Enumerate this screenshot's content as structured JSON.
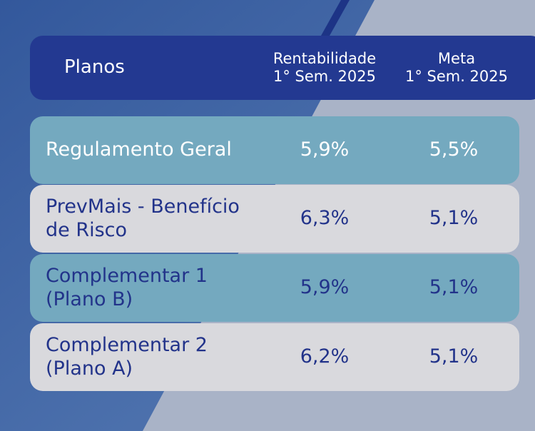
{
  "table": {
    "header": [
      [
        "Planos"
      ],
      [
        "Rentabilidade",
        "1° Sem. 2025"
      ],
      [
        "Meta",
        "1° Sem. 2025"
      ]
    ],
    "rows": [
      [
        [
          "Regulamento Geral"
        ],
        "5,9%",
        "5,5%"
      ],
      [
        [
          "PrevMais - Benefício",
          "de Risco"
        ],
        "6,3%",
        "5,1%"
      ],
      [
        [
          "Complementar 1",
          "(Plano B)"
        ],
        "5,9%",
        "5,1%"
      ],
      [
        [
          "Complementar 2",
          "(Plano A)"
        ],
        "6,2%",
        "5,1%"
      ]
    ]
  }
}
